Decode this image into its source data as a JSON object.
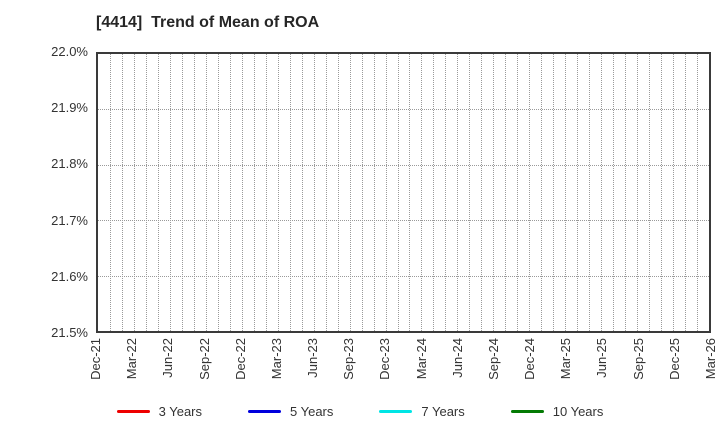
{
  "chart_data": {
    "type": "line",
    "title": "[4414]  Trend of Mean of ROA",
    "x_tick_labels": [
      "Dec-21",
      "Mar-22",
      "Jun-22",
      "Sep-22",
      "Dec-22",
      "Mar-23",
      "Jun-23",
      "Sep-23",
      "Dec-23",
      "Mar-24",
      "Jun-24",
      "Sep-24",
      "Dec-24",
      "Mar-25",
      "Jun-25",
      "Sep-25",
      "Dec-25",
      "Mar-26"
    ],
    "x_tick_interval_months": 3,
    "x_total_month_points": 52,
    "y_tick_labels": [
      "22.0%",
      "21.9%",
      "21.8%",
      "21.7%",
      "21.6%",
      "21.5%"
    ],
    "ylim": [
      21.5,
      22.0
    ],
    "y_tick_step": 0.1,
    "grid": "dotted",
    "legend_position": "bottom-center",
    "series": [
      {
        "name": "3 Years",
        "color": "#ee0000",
        "values": []
      },
      {
        "name": "5 Years",
        "color": "#0000dd",
        "values": []
      },
      {
        "name": "7 Years",
        "color": "#00e5e5",
        "values": []
      },
      {
        "name": "10 Years",
        "color": "#047a04",
        "values": []
      }
    ]
  },
  "colors": {
    "background": "#ffffff",
    "plot_border": "#3a3a3a",
    "gridline": "#9a9a9a",
    "text": "#333333"
  }
}
